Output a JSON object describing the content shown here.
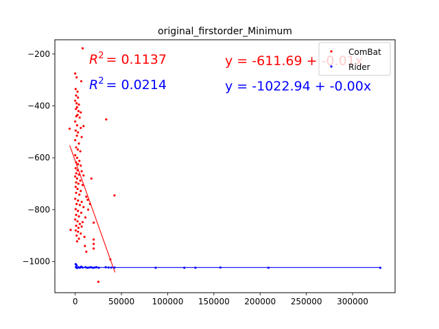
{
  "chart_data": {
    "type": "scatter",
    "title": "original_firstorder_Minimum",
    "xlabel": "",
    "ylabel": "",
    "xlim": [
      -22000,
      346000
    ],
    "ylim": [
      -1120,
      -145
    ],
    "x_ticks": [
      0,
      50000,
      100000,
      150000,
      200000,
      250000,
      300000
    ],
    "x_tick_labels": [
      "0",
      "50000",
      "100000",
      "150000",
      "200000",
      "250000",
      "300000"
    ],
    "y_ticks": [
      -1000,
      -800,
      -600,
      -400,
      -200
    ],
    "y_tick_labels": [
      "−1000",
      "−800",
      "−600",
      "−400",
      "−200"
    ],
    "grid": false,
    "legend": {
      "placement": "top-right",
      "entries": [
        "ComBat",
        "Rider"
      ]
    },
    "annotations": [
      {
        "text": "R² = 0.1137",
        "r2_label": "R",
        "r2_sup": "2",
        "r2_value": "= 0.1137",
        "color": "#ff0000"
      },
      {
        "text": "R² = 0.0214",
        "r2_label": "R",
        "r2_sup": "2",
        "r2_value": "= 0.0214",
        "color": "#0000ff"
      },
      {
        "text": "y = -611.69 + -0.01x",
        "color": "#ff0000"
      },
      {
        "text": "y = -1022.94 + -0.00x",
        "color": "#0000ff"
      }
    ],
    "series": [
      {
        "name": "ComBat",
        "color": "#ff0000",
        "fit": {
          "intercept": -611.69,
          "slope": -0.01,
          "x_range": [
            -6000,
            43000
          ]
        },
        "points": [
          [
            8000,
            -178
          ],
          [
            0,
            -275
          ],
          [
            1500,
            -290
          ],
          [
            6500,
            -305
          ],
          [
            500,
            -335
          ],
          [
            2500,
            -345
          ],
          [
            1000,
            -360
          ],
          [
            3000,
            -368
          ],
          [
            0,
            -380
          ],
          [
            1500,
            -390
          ],
          [
            4000,
            -395
          ],
          [
            2000,
            -405
          ],
          [
            800,
            -412
          ],
          [
            3500,
            -420
          ],
          [
            6000,
            -425
          ],
          [
            2500,
            -435
          ],
          [
            33500,
            -452
          ],
          [
            1200,
            -440
          ],
          [
            4800,
            -445
          ],
          [
            0,
            -460
          ],
          [
            2000,
            -475
          ],
          [
            9000,
            -478
          ],
          [
            -6000,
            -488
          ],
          [
            6000,
            -485
          ],
          [
            500,
            -495
          ],
          [
            3000,
            -502
          ],
          [
            1800,
            -515
          ],
          [
            7000,
            -520
          ],
          [
            0,
            -532
          ],
          [
            4000,
            -545
          ],
          [
            1000,
            -560
          ],
          [
            2800,
            -568
          ],
          [
            5500,
            -575
          ],
          [
            0,
            -590
          ],
          [
            2000,
            -600
          ],
          [
            4500,
            -612
          ],
          [
            1000,
            -618
          ],
          [
            3000,
            -625
          ],
          [
            6000,
            -630
          ],
          [
            500,
            -640
          ],
          [
            2500,
            -648
          ],
          [
            7000,
            -652
          ],
          [
            1200,
            -660
          ],
          [
            4000,
            -665
          ],
          [
            9000,
            -668
          ],
          [
            0,
            -672
          ],
          [
            2000,
            -680
          ],
          [
            17500,
            -680
          ],
          [
            5500,
            -688
          ],
          [
            1000,
            -695
          ],
          [
            3500,
            -700
          ],
          [
            8000,
            -705
          ],
          [
            500,
            -712
          ],
          [
            2500,
            -720
          ],
          [
            6000,
            -728
          ],
          [
            1000,
            -735
          ],
          [
            4500,
            -742
          ],
          [
            42500,
            -745
          ],
          [
            12000,
            -750
          ],
          [
            0,
            -758
          ],
          [
            3000,
            -765
          ],
          [
            13500,
            -762
          ],
          [
            7000,
            -770
          ],
          [
            1500,
            -778
          ],
          [
            5000,
            -782
          ],
          [
            16000,
            -778
          ],
          [
            9000,
            -790
          ],
          [
            500,
            -798
          ],
          [
            3000,
            -805
          ],
          [
            14000,
            -800
          ],
          [
            6500,
            -812
          ],
          [
            1000,
            -820
          ],
          [
            4000,
            -826
          ],
          [
            11000,
            -830
          ],
          [
            0,
            -838
          ],
          [
            2500,
            -845
          ],
          [
            8000,
            -848
          ],
          [
            20000,
            -850
          ],
          [
            5000,
            -855
          ],
          [
            1000,
            -862
          ],
          [
            7000,
            -865
          ],
          [
            3500,
            -870
          ],
          [
            -5000,
            -878
          ],
          [
            500,
            -880
          ],
          [
            3000,
            -885
          ],
          [
            6000,
            -892
          ],
          [
            1500,
            -900
          ],
          [
            10000,
            -905
          ],
          [
            4000,
            -912
          ],
          [
            20000,
            -915
          ],
          [
            2000,
            -922
          ],
          [
            20000,
            -932
          ],
          [
            10500,
            -940
          ],
          [
            20000,
            -950
          ],
          [
            12000,
            -962
          ],
          [
            38000,
            -992
          ],
          [
            25000,
            -1078
          ]
        ]
      },
      {
        "name": "Rider",
        "color": "#0000ff",
        "fit": {
          "intercept": -1022.94,
          "slope": -0.0,
          "x_range": [
            0,
            330000
          ]
        },
        "points": [
          [
            500,
            -1010
          ],
          [
            1500,
            -1015
          ],
          [
            800,
            -1022
          ],
          [
            2000,
            -1025
          ],
          [
            3500,
            -1022
          ],
          [
            5000,
            -1024
          ],
          [
            6500,
            -1020
          ],
          [
            8000,
            -1023
          ],
          [
            11000,
            -1022
          ],
          [
            13000,
            -1024
          ],
          [
            15000,
            -1023
          ],
          [
            17000,
            -1022
          ],
          [
            19000,
            -1024
          ],
          [
            21000,
            -1023
          ],
          [
            23000,
            -1022
          ],
          [
            25500,
            -1024
          ],
          [
            33000,
            -1022
          ],
          [
            36000,
            -1023
          ],
          [
            39000,
            -1023
          ],
          [
            42500,
            -1023
          ],
          [
            87000,
            -1024
          ],
          [
            118000,
            -1024
          ],
          [
            130000,
            -1024
          ],
          [
            157000,
            -1023
          ],
          [
            209000,
            -1024
          ],
          [
            330000,
            -1024
          ]
        ]
      }
    ]
  }
}
